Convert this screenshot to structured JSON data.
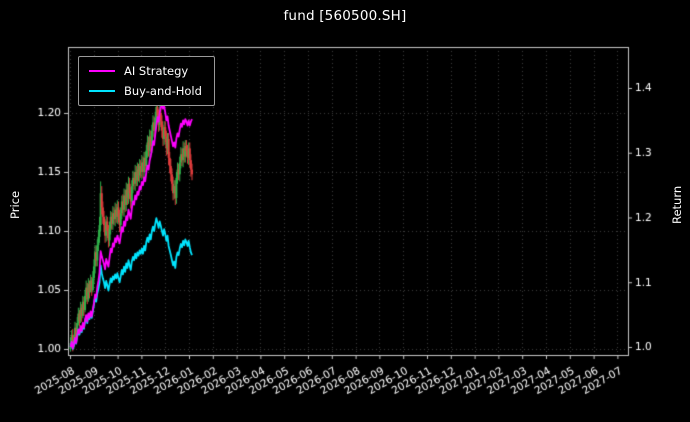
{
  "title": "fund [560500.SH]",
  "chart_data": {
    "type": "candlestick+line",
    "title": "fund [560500.SH]",
    "grid": "dotted",
    "legend_position": "upper-left",
    "left_axis": {
      "label": "Price",
      "ticks": [
        1.0,
        1.05,
        1.1,
        1.15,
        1.2
      ],
      "ticklabels": [
        "1.00",
        "1.05",
        "1.10",
        "1.15",
        "1.20"
      ],
      "range": [
        0.9949,
        1.2559
      ]
    },
    "right_axis": {
      "label": "Return",
      "ticks": [
        1.0,
        1.1,
        1.2,
        1.3,
        1.4
      ],
      "ticklabels": [
        "1.0",
        "1.1",
        "1.2",
        "1.3",
        "1.4"
      ],
      "range": [
        0.9876,
        1.4633
      ]
    },
    "x_axis": {
      "ticklabels": [
        "2025-08",
        "2025-09",
        "2025-10",
        "2025-11",
        "2025-12",
        "2026-01",
        "2026-02",
        "2026-03",
        "2026-04",
        "2026-05",
        "2026-06",
        "2026-07",
        "2026-08",
        "2026-09",
        "2026-10",
        "2026-11",
        "2026-12",
        "2027-01",
        "2027-02",
        "2027-03",
        "2027-04",
        "2027-05",
        "2027-06",
        "2027-07"
      ]
    },
    "colors": {
      "up": "#2fb34a",
      "down": "#e03c3c",
      "grid": "#3d3d3d",
      "spine": "#c8c8c8",
      "text": "#ffffff",
      "background": "#000000"
    },
    "candles": {
      "start_date": "2025-08-01",
      "span_months": 5.15,
      "first_open": 1.0,
      "high": [
        1.01,
        1.016,
        1.017,
        1.012,
        1.023,
        1.022,
        1.027,
        1.035,
        1.033,
        1.04,
        1.038,
        1.045,
        1.044,
        1.05,
        1.058,
        1.056,
        1.06,
        1.058,
        1.063,
        1.061,
        1.066,
        1.076,
        1.088,
        1.087,
        1.093,
        1.101,
        1.112,
        1.142,
        1.138,
        1.125,
        1.117,
        1.11,
        1.113,
        1.112,
        1.105,
        1.108,
        1.117,
        1.116,
        1.121,
        1.12,
        1.124,
        1.123,
        1.126,
        1.125,
        1.118,
        1.12,
        1.13,
        1.131,
        1.136,
        1.135,
        1.141,
        1.14,
        1.146,
        1.145,
        1.137,
        1.143,
        1.151,
        1.15,
        1.156,
        1.155,
        1.158,
        1.157,
        1.161,
        1.16,
        1.164,
        1.163,
        1.167,
        1.167,
        1.173,
        1.181,
        1.18,
        1.186,
        1.185,
        1.19,
        1.198,
        1.197,
        1.201,
        1.211,
        1.21,
        1.203,
        1.206,
        1.205,
        1.198,
        1.19,
        1.193,
        1.193,
        1.185,
        1.183,
        1.183,
        1.167,
        1.161,
        1.153,
        1.146,
        1.143,
        1.143,
        1.15,
        1.158,
        1.157,
        1.163,
        1.171,
        1.17,
        1.176,
        1.175,
        1.177,
        1.177,
        1.173,
        1.175,
        1.175,
        1.165,
        1.157
      ],
      "low": [
        0.998,
        1.003,
        0.998,
        1.0,
        1.006,
        1.006,
        1.016,
        1.02,
        1.019,
        1.022,
        1.023,
        1.026,
        1.028,
        1.031,
        1.04,
        1.038,
        1.04,
        1.043,
        1.052,
        1.045,
        1.048,
        1.055,
        1.064,
        1.07,
        1.07,
        1.083,
        1.09,
        1.1,
        1.114,
        1.106,
        1.099,
        1.09,
        1.091,
        1.094,
        1.086,
        1.087,
        1.097,
        1.101,
        1.101,
        1.105,
        1.104,
        1.107,
        1.106,
        1.107,
        1.099,
        1.1,
        1.11,
        1.113,
        1.112,
        1.116,
        1.117,
        1.122,
        1.123,
        1.127,
        1.119,
        1.12,
        1.132,
        1.135,
        1.134,
        1.138,
        1.138,
        1.142,
        1.141,
        1.145,
        1.144,
        1.145,
        1.144,
        1.15,
        1.15,
        1.162,
        1.163,
        1.162,
        1.167,
        1.166,
        1.18,
        1.179,
        1.18,
        1.19,
        1.192,
        1.184,
        1.185,
        1.188,
        1.179,
        1.172,
        1.173,
        1.175,
        1.164,
        1.165,
        1.156,
        1.149,
        1.142,
        1.134,
        1.126,
        1.127,
        1.122,
        1.123,
        1.14,
        1.143,
        1.142,
        1.153,
        1.155,
        1.154,
        1.158,
        1.158,
        1.163,
        1.157,
        1.156,
        1.154,
        1.146,
        1.143
      ],
      "close": [
        1.005,
        1.012,
        1.002,
        1.008,
        1.018,
        1.01,
        1.022,
        1.03,
        1.024,
        1.035,
        1.028,
        1.04,
        1.033,
        1.045,
        1.052,
        1.042,
        1.055,
        1.048,
        1.058,
        1.05,
        1.06,
        1.07,
        1.082,
        1.075,
        1.088,
        1.095,
        1.105,
        1.132,
        1.12,
        1.112,
        1.105,
        1.096,
        1.108,
        1.1,
        1.092,
        1.102,
        1.112,
        1.106,
        1.115,
        1.11,
        1.118,
        1.112,
        1.12,
        1.112,
        1.105,
        1.115,
        1.125,
        1.118,
        1.13,
        1.122,
        1.135,
        1.128,
        1.14,
        1.132,
        1.125,
        1.138,
        1.145,
        1.14,
        1.15,
        1.143,
        1.152,
        1.147,
        1.155,
        1.15,
        1.158,
        1.15,
        1.162,
        1.155,
        1.168,
        1.175,
        1.168,
        1.18,
        1.172,
        1.185,
        1.192,
        1.185,
        1.196,
        1.205,
        1.198,
        1.19,
        1.2,
        1.193,
        1.185,
        1.178,
        1.188,
        1.18,
        1.17,
        1.178,
        1.162,
        1.155,
        1.148,
        1.14,
        1.132,
        1.138,
        1.128,
        1.145,
        1.152,
        1.148,
        1.158,
        1.165,
        1.16,
        1.17,
        1.163,
        1.172,
        1.168,
        1.162,
        1.17,
        1.16,
        1.152,
        1.148
      ]
    },
    "series": [
      {
        "name": "AI Strategy",
        "color": "#ff00ff",
        "axis": "right",
        "values": [
          1.0,
          1.008,
          0.998,
          1.004,
          1.014,
          1.006,
          1.018,
          1.027,
          1.021,
          1.032,
          1.025,
          1.037,
          1.03,
          1.042,
          1.049,
          1.039,
          1.052,
          1.045,
          1.055,
          1.047,
          1.058,
          1.068,
          1.081,
          1.076,
          1.092,
          1.102,
          1.115,
          1.148,
          1.14,
          1.134,
          1.128,
          1.12,
          1.136,
          1.13,
          1.124,
          1.138,
          1.152,
          1.146,
          1.16,
          1.155,
          1.168,
          1.162,
          1.172,
          1.166,
          1.16,
          1.172,
          1.185,
          1.178,
          1.194,
          1.187,
          1.202,
          1.196,
          1.212,
          1.205,
          1.198,
          1.214,
          1.225,
          1.22,
          1.234,
          1.228,
          1.24,
          1.235,
          1.248,
          1.243,
          1.255,
          1.25,
          1.262,
          1.256,
          1.27,
          1.28,
          1.274,
          1.288,
          1.295,
          1.305,
          1.318,
          1.312,
          1.328,
          1.342,
          1.355,
          1.348,
          1.362,
          1.37,
          1.376,
          1.368,
          1.372,
          1.362,
          1.35,
          1.356,
          1.342,
          1.334,
          1.326,
          1.318,
          1.31,
          1.316,
          1.308,
          1.322,
          1.33,
          1.325,
          1.336,
          1.345,
          1.34,
          1.35,
          1.344,
          1.352,
          1.348,
          1.342,
          1.35,
          1.342,
          1.348,
          1.352
        ]
      },
      {
        "name": "Buy-and-Hold",
        "color": "#00e5ff",
        "axis": "right",
        "values": [
          1.0,
          1.007,
          0.997,
          1.003,
          1.013,
          1.005,
          1.017,
          1.025,
          1.019,
          1.03,
          1.023,
          1.035,
          1.028,
          1.04,
          1.047,
          1.037,
          1.05,
          1.043,
          1.053,
          1.045,
          1.055,
          1.065,
          1.077,
          1.07,
          1.083,
          1.09,
          1.1,
          1.126,
          1.114,
          1.106,
          1.1,
          1.091,
          1.102,
          1.095,
          1.087,
          1.097,
          1.106,
          1.1,
          1.109,
          1.104,
          1.112,
          1.106,
          1.114,
          1.106,
          1.1,
          1.109,
          1.119,
          1.112,
          1.124,
          1.116,
          1.129,
          1.122,
          1.134,
          1.126,
          1.119,
          1.132,
          1.139,
          1.134,
          1.144,
          1.137,
          1.146,
          1.141,
          1.149,
          1.144,
          1.152,
          1.144,
          1.156,
          1.149,
          1.162,
          1.169,
          1.162,
          1.174,
          1.166,
          1.179,
          1.186,
          1.179,
          1.19,
          1.199,
          1.192,
          1.184,
          1.194,
          1.187,
          1.179,
          1.172,
          1.182,
          1.174,
          1.164,
          1.172,
          1.156,
          1.149,
          1.142,
          1.134,
          1.126,
          1.132,
          1.122,
          1.139,
          1.146,
          1.142,
          1.152,
          1.159,
          1.154,
          1.164,
          1.157,
          1.166,
          1.162,
          1.156,
          1.164,
          1.154,
          1.146,
          1.142
        ]
      }
    ]
  }
}
